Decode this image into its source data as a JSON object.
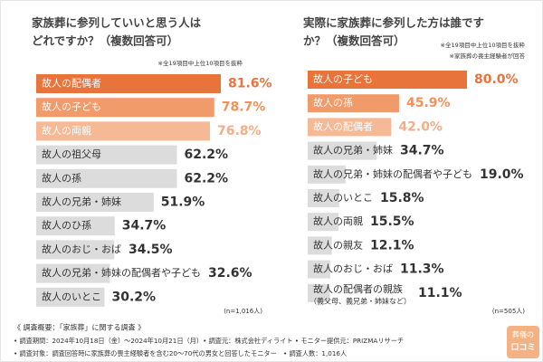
{
  "chart_data": [
    {
      "type": "hbar",
      "title": [
        "家族葬に参列していいと思う人は",
        "どれですか？（複数回答可）"
      ],
      "notes": [
        "※全19項目中上位10項目を抜粋"
      ],
      "sample": "(n=1,016人)",
      "categories": [
        "故人の配偶者",
        "故人の子ども",
        "故人の両親",
        "故人の祖父母",
        "故人の孫",
        "故人の兄弟・姉妹",
        "故人のひ孫",
        "故人のおじ・おば",
        "故人の兄弟・姉妹の配偶者や子ども",
        "故人のいとこ"
      ],
      "category_notes": [
        null,
        null,
        null,
        null,
        null,
        null,
        null,
        null,
        null,
        null
      ],
      "values": [
        81.6,
        78.7,
        76.8,
        62.2,
        62.2,
        51.9,
        34.7,
        34.5,
        32.6,
        30.2
      ],
      "value_labels": [
        "81.6%",
        "78.7%",
        "76.8%",
        "62.2%",
        "62.2%",
        "51.9%",
        "34.7%",
        "34.5%",
        "32.6%",
        "30.2%"
      ],
      "colors": [
        "#e8743b",
        "#f19a6a",
        "#f6b996",
        "#dcdcdc",
        "#dcdcdc",
        "#dcdcdc",
        "#dcdcdc",
        "#dcdcdc",
        "#dcdcdc",
        "#dcdcdc"
      ],
      "value_colors": [
        "#e8743b",
        "#f0925c",
        "#f4ad86",
        "#333333",
        "#333333",
        "#333333",
        "#333333",
        "#333333",
        "#333333",
        "#333333"
      ]
    },
    {
      "type": "hbar",
      "title": [
        "実際に家族葬に参列した方は誰です",
        "か？（複数回答可）"
      ],
      "notes": [
        "※全19項目中上位10項目を抜粋",
        "※家族葬の喪主経験者が回答"
      ],
      "sample": "(n=505人)",
      "categories": [
        "故人の子ども",
        "故人の孫",
        "故人の配偶者",
        "故人の兄弟・姉妹",
        "故人の兄弟・姉妹の配偶者や子ども",
        "故人のいとこ",
        "故人の両親",
        "故人の親友",
        "故人のおじ・おば",
        "故人の配偶者の親族"
      ],
      "category_notes": [
        null,
        null,
        null,
        null,
        null,
        null,
        null,
        null,
        null,
        "（義父母、義兄弟・姉妹など）"
      ],
      "values": [
        80.0,
        45.9,
        42.0,
        34.7,
        19.0,
        15.8,
        15.5,
        12.1,
        11.3,
        11.1
      ],
      "value_labels": [
        "80.0%",
        "45.9%",
        "42.0%",
        "34.7%",
        "19.0%",
        "15.8%",
        "15.5%",
        "12.1%",
        "11.3%",
        "11.1%"
      ],
      "colors": [
        "#e8743b",
        "#f19a6a",
        "#f6b996",
        "#dcdcdc",
        "#dcdcdc",
        "#dcdcdc",
        "#dcdcdc",
        "#dcdcdc",
        "#dcdcdc",
        "#dcdcdc"
      ],
      "value_colors": [
        "#e8743b",
        "#f0925c",
        "#f4ad86",
        "#333333",
        "#333333",
        "#333333",
        "#333333",
        "#333333",
        "#333333",
        "#333333"
      ]
    }
  ],
  "footer": [
    "《 調査概要：「家族葬」に関する調査 》",
    "• 調査期間：2024年10月18日（金）〜2024年10月21日（月）• 調査元：株式会社ディライト • モニター提供元：PRIZMAリサーチ",
    "• 調査対象：調査回答時に家族葬の喪主経験者を含む20〜70代の男女と回答したモニター　• 調査人数：1,016人"
  ],
  "logo": [
    "葬儀の",
    "口コミ"
  ]
}
